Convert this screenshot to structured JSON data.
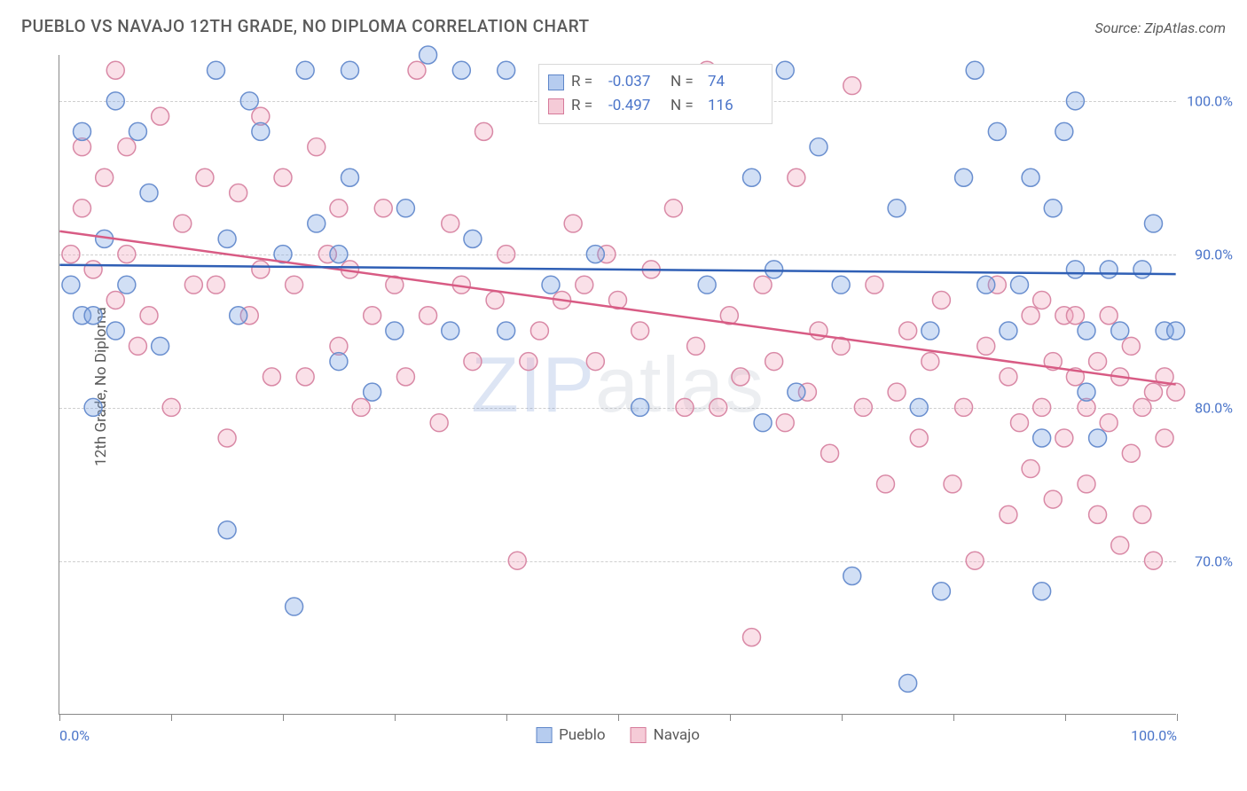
{
  "title": "PUEBLO VS NAVAJO 12TH GRADE, NO DIPLOMA CORRELATION CHART",
  "source": "Source: ZipAtlas.com",
  "watermark_a": "ZIP",
  "watermark_b": "atlas",
  "chart": {
    "type": "scatter",
    "ylabel": "12th Grade, No Diploma",
    "x_axis": {
      "min": 0,
      "max": 100,
      "ticks_count": 10,
      "labels": [
        {
          "pos": 0,
          "text": "0.0%"
        },
        {
          "pos": 100,
          "text": "100.0%"
        }
      ]
    },
    "y_axis": {
      "min": 60,
      "max": 103,
      "grid": [
        70,
        80,
        90,
        100
      ],
      "labels": [
        "70.0%",
        "80.0%",
        "90.0%",
        "100.0%"
      ]
    },
    "colors": {
      "blue_fill": "rgba(122,163,225,0.35)",
      "blue_stroke": "#6a8fcf",
      "pink_fill": "rgba(240,165,190,0.35)",
      "pink_stroke": "#d989a6",
      "blue_line": "#2f5fb5",
      "pink_line": "#d85b84",
      "grid": "#cfcfcf",
      "axis": "#888888",
      "text": "#5a5a5a",
      "value_text": "#4a74c9"
    },
    "marker_radius": 10,
    "marker_stroke_width": 1.5,
    "line_width": 2.5,
    "regression": {
      "blue": {
        "y_at_0": 89.3,
        "y_at_100": 88.7
      },
      "pink": {
        "y_at_0": 91.5,
        "y_at_100": 81.5
      }
    },
    "stats": [
      {
        "swatch": "blue",
        "R_lbl": "R =",
        "R": "-0.037",
        "N_lbl": "N =",
        "N": "74"
      },
      {
        "swatch": "pink",
        "R_lbl": "R =",
        "R": "-0.497",
        "N_lbl": "N =",
        "N": "116"
      }
    ],
    "legend": [
      {
        "swatch": "blue",
        "label": "Pueblo"
      },
      {
        "swatch": "pink",
        "label": "Navajo"
      }
    ],
    "series": {
      "blue": [
        [
          1,
          88
        ],
        [
          2,
          98
        ],
        [
          2,
          86
        ],
        [
          3,
          80
        ],
        [
          3,
          86
        ],
        [
          4,
          91
        ],
        [
          5,
          100
        ],
        [
          5,
          85
        ],
        [
          6,
          88
        ],
        [
          7,
          98
        ],
        [
          8,
          94
        ],
        [
          9,
          84
        ],
        [
          14,
          102
        ],
        [
          15,
          72
        ],
        [
          15,
          91
        ],
        [
          16,
          86
        ],
        [
          17,
          100
        ],
        [
          18,
          98
        ],
        [
          20,
          90
        ],
        [
          21,
          67
        ],
        [
          22,
          102
        ],
        [
          23,
          92
        ],
        [
          25,
          83
        ],
        [
          25,
          90
        ],
        [
          26,
          102
        ],
        [
          26,
          95
        ],
        [
          28,
          81
        ],
        [
          30,
          85
        ],
        [
          31,
          93
        ],
        [
          33,
          103
        ],
        [
          35,
          85
        ],
        [
          36,
          102
        ],
        [
          37,
          91
        ],
        [
          40,
          102
        ],
        [
          40,
          85
        ],
        [
          44,
          88
        ],
        [
          48,
          90
        ],
        [
          52,
          80
        ],
        [
          58,
          88
        ],
        [
          62,
          95
        ],
        [
          63,
          79
        ],
        [
          64,
          89
        ],
        [
          65,
          102
        ],
        [
          66,
          81
        ],
        [
          68,
          97
        ],
        [
          70,
          88
        ],
        [
          71,
          69
        ],
        [
          75,
          93
        ],
        [
          76,
          62
        ],
        [
          77,
          80
        ],
        [
          78,
          85
        ],
        [
          79,
          68
        ],
        [
          81,
          95
        ],
        [
          82,
          102
        ],
        [
          83,
          88
        ],
        [
          84,
          98
        ],
        [
          85,
          85
        ],
        [
          86,
          88
        ],
        [
          87,
          95
        ],
        [
          88,
          68
        ],
        [
          88,
          78
        ],
        [
          89,
          93
        ],
        [
          90,
          98
        ],
        [
          91,
          89
        ],
        [
          91,
          100
        ],
        [
          92,
          81
        ],
        [
          92,
          85
        ],
        [
          93,
          78
        ],
        [
          94,
          89
        ],
        [
          95,
          85
        ],
        [
          97,
          89
        ],
        [
          98,
          92
        ],
        [
          99,
          85
        ],
        [
          100,
          85
        ]
      ],
      "pink": [
        [
          1,
          90
        ],
        [
          2,
          93
        ],
        [
          2,
          97
        ],
        [
          3,
          89
        ],
        [
          4,
          95
        ],
        [
          5,
          87
        ],
        [
          5,
          102
        ],
        [
          6,
          90
        ],
        [
          6,
          97
        ],
        [
          7,
          84
        ],
        [
          8,
          86
        ],
        [
          9,
          99
        ],
        [
          10,
          80
        ],
        [
          11,
          92
        ],
        [
          12,
          88
        ],
        [
          13,
          95
        ],
        [
          14,
          88
        ],
        [
          15,
          78
        ],
        [
          16,
          94
        ],
        [
          17,
          86
        ],
        [
          18,
          99
        ],
        [
          18,
          89
        ],
        [
          19,
          82
        ],
        [
          20,
          95
        ],
        [
          21,
          88
        ],
        [
          22,
          82
        ],
        [
          23,
          97
        ],
        [
          24,
          90
        ],
        [
          25,
          84
        ],
        [
          25,
          93
        ],
        [
          26,
          89
        ],
        [
          27,
          80
        ],
        [
          28,
          86
        ],
        [
          29,
          93
        ],
        [
          30,
          88
        ],
        [
          31,
          82
        ],
        [
          32,
          102
        ],
        [
          33,
          86
        ],
        [
          34,
          79
        ],
        [
          35,
          92
        ],
        [
          36,
          88
        ],
        [
          37,
          83
        ],
        [
          38,
          98
        ],
        [
          39,
          87
        ],
        [
          40,
          90
        ],
        [
          41,
          70
        ],
        [
          42,
          83
        ],
        [
          43,
          85
        ],
        [
          45,
          87
        ],
        [
          46,
          92
        ],
        [
          47,
          88
        ],
        [
          48,
          83
        ],
        [
          49,
          90
        ],
        [
          50,
          87
        ],
        [
          52,
          85
        ],
        [
          53,
          89
        ],
        [
          55,
          93
        ],
        [
          56,
          80
        ],
        [
          57,
          84
        ],
        [
          58,
          102
        ],
        [
          59,
          80
        ],
        [
          60,
          86
        ],
        [
          61,
          82
        ],
        [
          62,
          65
        ],
        [
          63,
          88
        ],
        [
          64,
          83
        ],
        [
          65,
          79
        ],
        [
          66,
          95
        ],
        [
          67,
          81
        ],
        [
          68,
          85
        ],
        [
          69,
          77
        ],
        [
          70,
          84
        ],
        [
          71,
          101
        ],
        [
          72,
          80
        ],
        [
          73,
          88
        ],
        [
          74,
          75
        ],
        [
          75,
          81
        ],
        [
          76,
          85
        ],
        [
          77,
          78
        ],
        [
          78,
          83
        ],
        [
          79,
          87
        ],
        [
          80,
          75
        ],
        [
          81,
          80
        ],
        [
          82,
          70
        ],
        [
          83,
          84
        ],
        [
          84,
          88
        ],
        [
          85,
          73
        ],
        [
          85,
          82
        ],
        [
          86,
          79
        ],
        [
          87,
          86
        ],
        [
          87,
          76
        ],
        [
          88,
          80
        ],
        [
          88,
          87
        ],
        [
          89,
          74
        ],
        [
          89,
          83
        ],
        [
          90,
          86
        ],
        [
          90,
          78
        ],
        [
          91,
          82
        ],
        [
          91,
          86
        ],
        [
          92,
          75
        ],
        [
          92,
          80
        ],
        [
          93,
          73
        ],
        [
          93,
          83
        ],
        [
          94,
          79
        ],
        [
          94,
          86
        ],
        [
          95,
          71
        ],
        [
          95,
          82
        ],
        [
          96,
          77
        ],
        [
          96,
          84
        ],
        [
          97,
          80
        ],
        [
          97,
          73
        ],
        [
          98,
          70
        ],
        [
          98,
          81
        ],
        [
          99,
          82
        ],
        [
          99,
          78
        ],
        [
          100,
          81
        ]
      ]
    }
  }
}
